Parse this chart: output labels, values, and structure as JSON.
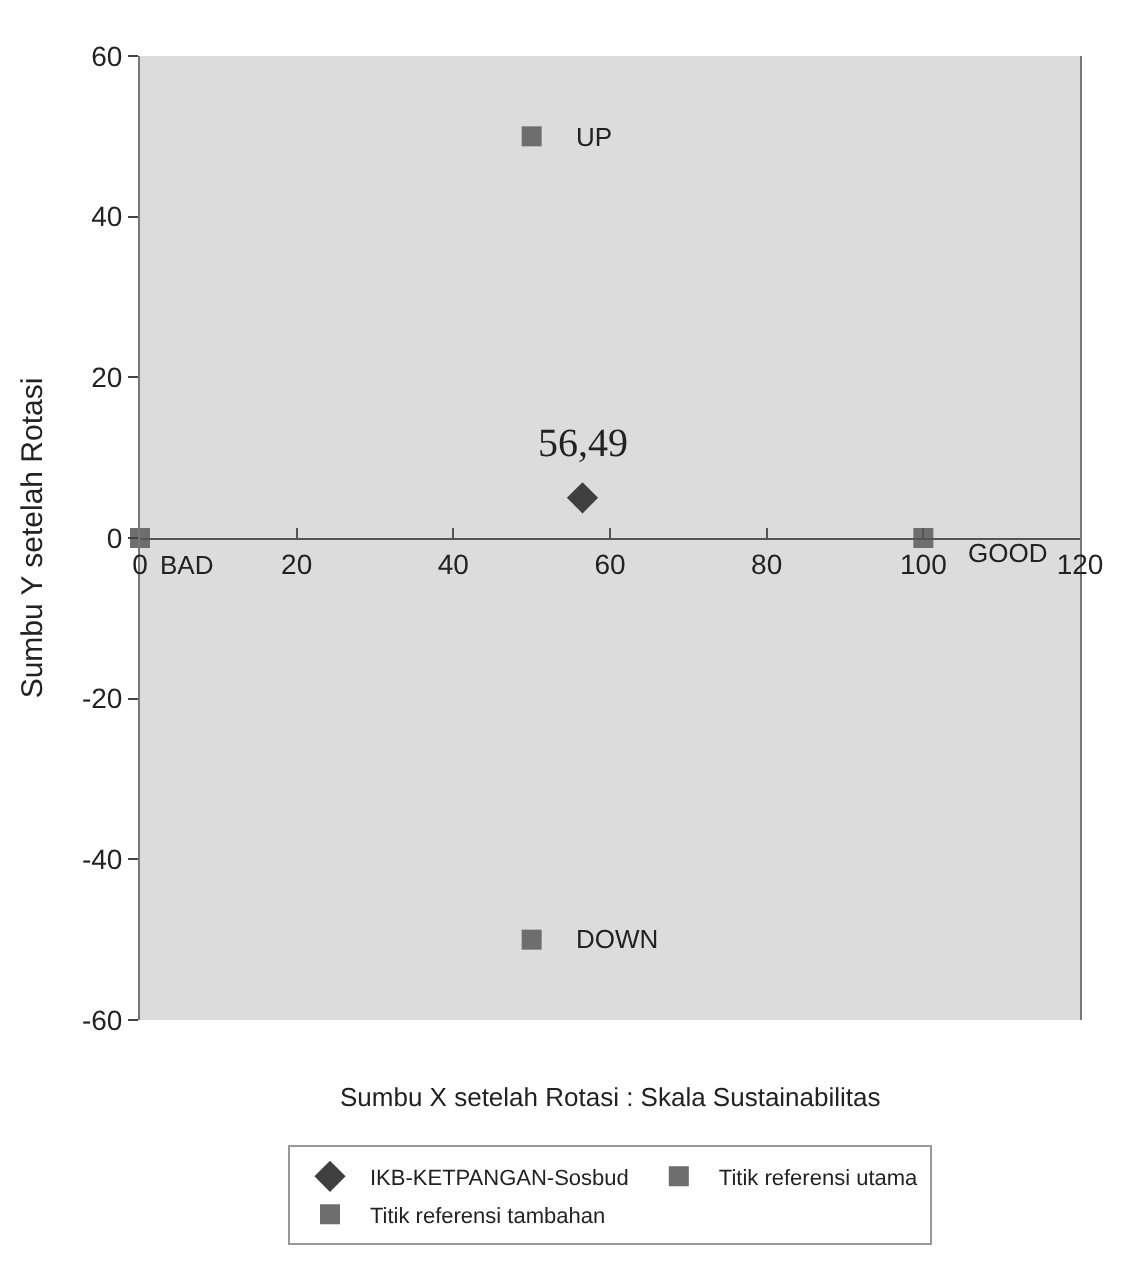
{
  "chart_data": {
    "type": "scatter",
    "xlabel": "Sumbu X setelah Rotasi : Skala Sustainabilitas",
    "ylabel": "Sumbu Y setelah Rotasi",
    "xlim": [
      0,
      120
    ],
    "xticks": [
      0,
      20,
      40,
      60,
      80,
      100,
      120
    ],
    "ylim": [
      -60,
      60
    ],
    "yticks": [
      -60,
      -40,
      -20,
      0,
      20,
      40,
      60
    ],
    "grid": false,
    "legend": "bottom",
    "series": [
      {
        "name": "IKB-KETPANGAN-Sosbud",
        "color": "#3f3f3f",
        "marker": "diamond",
        "x": [
          56.49
        ],
        "values": [
          5
        ]
      },
      {
        "name": "Titik referensi utama",
        "color": "#6e6e6e",
        "marker": "square",
        "x": [
          0,
          100
        ],
        "values": [
          0,
          0
        ]
      },
      {
        "name": "Titik referensi tambahan",
        "color": "#6e6e6e",
        "marker": "square",
        "x": [
          50,
          50
        ],
        "values": [
          50,
          -50
        ]
      }
    ],
    "annotations": [
      {
        "text": "56,49",
        "x": 56.49,
        "y": 5
      },
      {
        "text": "BAD",
        "x": 0,
        "y": 0
      },
      {
        "text": "GOOD",
        "x": 100,
        "y": 0
      },
      {
        "text": "UP",
        "x": 50,
        "y": 50
      },
      {
        "text": "DOWN",
        "x": 50,
        "y": -50
      }
    ]
  }
}
